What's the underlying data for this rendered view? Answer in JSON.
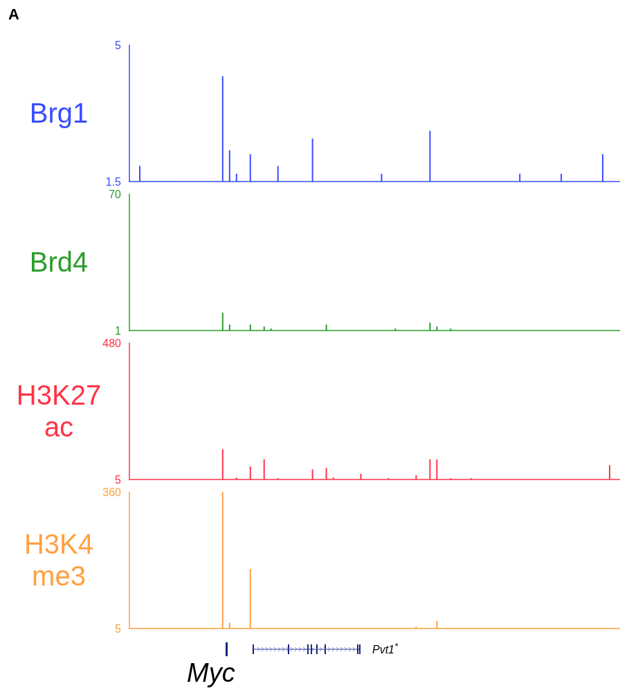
{
  "chart_data": [
    {
      "type": "bar",
      "title": "A",
      "ylabel": "Brg1",
      "color": "#3a4dff",
      "ylim": [
        1.5,
        5
      ],
      "yticks": [
        1.5,
        5
      ],
      "tick_labels": "y",
      "grid": false,
      "categories": [
        null,
        null,
        null,
        null,
        null,
        null,
        null,
        null,
        null,
        null,
        null,
        null,
        null,
        null,
        null,
        null,
        null,
        null,
        null,
        null,
        null,
        null,
        null,
        null,
        null,
        null,
        null,
        null,
        null,
        null,
        null,
        null,
        null,
        null,
        null,
        null,
        null,
        null,
        null,
        null,
        null,
        null,
        null,
        null,
        null,
        null,
        null,
        null,
        null,
        null,
        null,
        null,
        null,
        null,
        null,
        null,
        null,
        null,
        null,
        null,
        null,
        null,
        null,
        null,
        null,
        null,
        null,
        null,
        null,
        null,
        null
      ],
      "values": [
        1.5,
        1.9,
        1.5,
        1.5,
        1.5,
        1.5,
        1.5,
        1.5,
        1.5,
        1.5,
        1.5,
        1.5,
        1.5,
        4.2,
        2.3,
        1.7,
        1.5,
        2.2,
        1.5,
        1.5,
        1.5,
        1.9,
        1.5,
        1.5,
        1.5,
        1.5,
        2.6,
        1.5,
        1.5,
        1.5,
        1.5,
        1.5,
        1.5,
        1.5,
        1.5,
        1.5,
        1.7,
        1.5,
        1.5,
        1.5,
        1.5,
        1.5,
        1.5,
        2.8,
        1.5,
        1.5,
        1.5,
        1.5,
        1.5,
        1.5,
        1.5,
        1.5,
        1.5,
        1.5,
        1.5,
        1.5,
        1.7,
        1.5,
        1.5,
        1.5,
        1.5,
        1.5,
        1.7,
        1.5,
        1.5,
        1.5,
        1.5,
        1.5,
        2.2,
        1.5,
        1.5
      ]
    },
    {
      "type": "bar",
      "ylabel": "Brd4",
      "color": "#2a9d2a",
      "ylim": [
        1,
        70
      ],
      "yticks": [
        1,
        70
      ],
      "tick_labels": "y",
      "grid": false,
      "categories": [
        null,
        null,
        null,
        null,
        null,
        null,
        null,
        null,
        null,
        null,
        null,
        null,
        null,
        null,
        null,
        null,
        null,
        null,
        null,
        null,
        null,
        null,
        null,
        null,
        null,
        null,
        null,
        null,
        null,
        null,
        null,
        null,
        null,
        null,
        null,
        null,
        null,
        null,
        null,
        null,
        null,
        null,
        null,
        null,
        null,
        null,
        null,
        null,
        null,
        null,
        null,
        null,
        null,
        null,
        null,
        null,
        null,
        null,
        null,
        null,
        null,
        null,
        null,
        null,
        null,
        null,
        null,
        null,
        null,
        null,
        null
      ],
      "values": [
        1,
        1,
        1,
        1,
        1,
        1,
        1,
        1,
        1,
        1,
        1,
        1,
        1,
        10,
        4,
        1,
        1,
        4,
        1,
        3,
        2,
        1,
        1,
        1,
        1,
        1,
        1,
        1,
        4,
        1,
        1,
        1,
        1,
        1,
        1,
        1,
        1,
        1,
        2,
        1,
        1,
        1,
        1,
        5,
        3,
        1,
        2,
        1,
        1,
        1,
        1,
        1,
        1,
        1,
        1,
        1,
        1,
        1,
        1,
        1,
        1,
        1,
        1,
        1,
        1,
        1,
        1,
        1,
        1,
        1,
        1
      ]
    },
    {
      "type": "bar",
      "ylabel": "H3K27ac",
      "color": "#ff3347",
      "ylim": [
        5,
        480
      ],
      "yticks": [
        5,
        480
      ],
      "tick_labels": "y",
      "grid": false,
      "categories": [
        null,
        null,
        null,
        null,
        null,
        null,
        null,
        null,
        null,
        null,
        null,
        null,
        null,
        null,
        null,
        null,
        null,
        null,
        null,
        null,
        null,
        null,
        null,
        null,
        null,
        null,
        null,
        null,
        null,
        null,
        null,
        null,
        null,
        null,
        null,
        null,
        null,
        null,
        null,
        null,
        null,
        null,
        null,
        null,
        null,
        null,
        null,
        null,
        null,
        null,
        null,
        null,
        null,
        null,
        null,
        null,
        null,
        null,
        null,
        null,
        null,
        null,
        null,
        null,
        null,
        null,
        null,
        null,
        null,
        null,
        null
      ],
      "values": [
        5,
        5,
        5,
        5,
        5,
        5,
        5,
        5,
        5,
        5,
        5,
        5,
        5,
        110,
        5,
        12,
        5,
        50,
        5,
        75,
        5,
        10,
        5,
        5,
        5,
        5,
        40,
        5,
        45,
        12,
        5,
        5,
        5,
        25,
        5,
        5,
        5,
        10,
        5,
        5,
        5,
        20,
        5,
        75,
        75,
        5,
        10,
        5,
        5,
        10,
        5,
        5,
        5,
        5,
        5,
        5,
        5,
        5,
        5,
        5,
        5,
        5,
        5,
        5,
        5,
        5,
        5,
        5,
        5,
        55,
        5
      ]
    },
    {
      "type": "bar",
      "ylabel": "H3K4me3",
      "color": "#ffa040",
      "ylim": [
        5,
        360
      ],
      "yticks": [
        5,
        360
      ],
      "tick_labels": "y",
      "grid": false,
      "annotations": [
        "Myc",
        "Pvt1$^{*}$"
      ],
      "categories": [
        null,
        null,
        null,
        null,
        null,
        null,
        null,
        null,
        null,
        null,
        null,
        null,
        null,
        null,
        null,
        null,
        null,
        null,
        null,
        null,
        null,
        null,
        null,
        null,
        null,
        null,
        null,
        null,
        null,
        null,
        null,
        null,
        null,
        null,
        null,
        null,
        null,
        null,
        null,
        null,
        null,
        null,
        null,
        null,
        null,
        null,
        null,
        null,
        null,
        null,
        null,
        null,
        null,
        null,
        null,
        null,
        null,
        null,
        null,
        null,
        null,
        null,
        null,
        null,
        null,
        null,
        null,
        null,
        null,
        null,
        null
      ],
      "values": [
        5,
        5,
        5,
        5,
        5,
        5,
        5,
        5,
        5,
        5,
        5,
        5,
        5,
        360,
        20,
        5,
        5,
        160,
        5,
        5,
        5,
        5,
        5,
        5,
        5,
        5,
        5,
        5,
        5,
        5,
        5,
        5,
        5,
        5,
        5,
        5,
        5,
        5,
        5,
        5,
        5,
        10,
        5,
        5,
        25,
        5,
        5,
        5,
        5,
        5,
        5,
        5,
        5,
        5,
        5,
        5,
        5,
        5,
        5,
        5,
        5,
        5,
        5,
        5,
        5,
        5,
        5,
        5,
        5,
        5,
        5
      ]
    }
  ]
}
